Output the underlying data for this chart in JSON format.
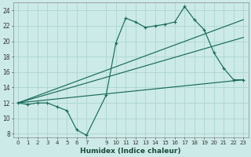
{
  "xlabel": "Humidex (Indice chaleur)",
  "xlim": [
    -0.5,
    23.5
  ],
  "ylim": [
    7.5,
    25
  ],
  "yticks": [
    8,
    10,
    12,
    14,
    16,
    18,
    20,
    22,
    24
  ],
  "xticks": [
    0,
    1,
    2,
    3,
    4,
    5,
    6,
    7,
    9,
    10,
    11,
    12,
    13,
    14,
    15,
    16,
    17,
    18,
    19,
    20,
    21,
    22,
    23
  ],
  "bg_color": "#cceae8",
  "grid_color": "#b0d8d5",
  "line_color": "#1a6b5a",
  "zigzag": {
    "x": [
      0,
      1,
      2,
      3,
      4,
      5,
      6,
      7,
      9,
      10,
      11,
      12,
      13,
      14,
      15,
      16,
      17,
      18,
      19,
      20,
      21,
      22,
      23
    ],
    "y": [
      12,
      11.8,
      12,
      12,
      11.5,
      11,
      8.5,
      7.8,
      13,
      19.8,
      23,
      22.5,
      21.8,
      22,
      22.2,
      22.5,
      24.5,
      22.8,
      21.5,
      18.5,
      16.5,
      15,
      15
    ]
  },
  "straight_lines": [
    {
      "x": [
        0,
        23
      ],
      "y": [
        12,
        15
      ]
    },
    {
      "x": [
        0,
        23
      ],
      "y": [
        12,
        22.8
      ]
    },
    {
      "x": [
        0,
        23
      ],
      "y": [
        12,
        20.5
      ]
    }
  ]
}
